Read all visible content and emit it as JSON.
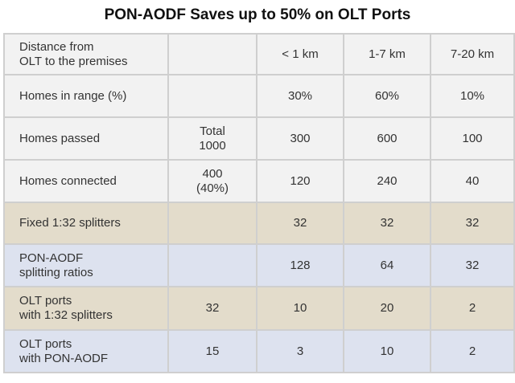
{
  "title": "PON-AODF Saves up to 50% on OLT Ports",
  "header": {
    "label": [
      "Distance from",
      "OLT to the premises"
    ],
    "total": "",
    "cols": [
      "< 1 km",
      "1-7 km",
      "7-20 km"
    ]
  },
  "rows": [
    {
      "label": [
        "Homes in range (%)"
      ],
      "total": [],
      "values": [
        "30%",
        "60%",
        "10%"
      ]
    },
    {
      "label": [
        "Homes passed"
      ],
      "total": [
        "Total",
        "1000"
      ],
      "values": [
        "300",
        "600",
        "100"
      ]
    },
    {
      "label": [
        "Homes connected"
      ],
      "total": [
        "400",
        "(40%)"
      ],
      "values": [
        "120",
        "240",
        "40"
      ]
    },
    {
      "label": [
        "Fixed 1:32 splitters"
      ],
      "total": [],
      "values": [
        "32",
        "32",
        "32"
      ]
    },
    {
      "label": [
        "PON-AODF",
        "splitting ratios"
      ],
      "total": [],
      "values": [
        "128",
        "64",
        "32"
      ]
    },
    {
      "label": [
        "OLT ports",
        "with 1:32 splitters"
      ],
      "total": [
        "32"
      ],
      "values": [
        "10",
        "20",
        "2"
      ]
    },
    {
      "label": [
        "OLT ports",
        "with PON-AODF"
      ],
      "total": [
        "15"
      ],
      "values": [
        "3",
        "10",
        "2"
      ]
    }
  ],
  "colors": {
    "splitter_row_bg": "#e3dccb",
    "aodf_row_bg": "#dde2ef",
    "default_bg": "#f2f2f2",
    "border": "#cfcfcf"
  }
}
